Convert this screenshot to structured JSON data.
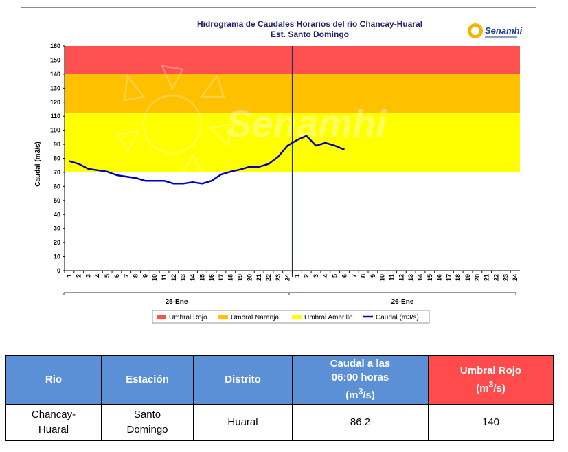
{
  "chart_data": {
    "type": "line",
    "title": "Hidrograma de Caudales Horarios del río Chancay-Huaral",
    "subtitle": "Est. Santo Domingo",
    "logo_text": "Senamhi",
    "watermark_text": "Senamhi",
    "ylabel": "Caudal  (m3/s)",
    "ylim": [
      0,
      160
    ],
    "yticks": [
      "0",
      "10",
      "20",
      "30",
      "40",
      "50",
      "60",
      "70",
      "80",
      "90",
      "100",
      "110",
      "120",
      "130",
      "140",
      "150",
      "160"
    ],
    "xticks": [
      "1",
      "2",
      "3",
      "4",
      "5",
      "6",
      "7",
      "8",
      "9",
      "10",
      "11",
      "12",
      "13",
      "14",
      "15",
      "16",
      "17",
      "18",
      "19",
      "20",
      "21",
      "22",
      "23",
      "24",
      "1",
      "2",
      "3",
      "4",
      "5",
      "6",
      "7",
      "8",
      "9",
      "10",
      "11",
      "12",
      "13",
      "14",
      "15",
      "16",
      "17",
      "18",
      "19",
      "20",
      "21",
      "22",
      "23",
      "24"
    ],
    "days": [
      "25-Ene",
      "26-Ene"
    ],
    "bands": [
      {
        "name": "Umbral Rojo",
        "from": 140,
        "to": 160,
        "color": "#ff5050"
      },
      {
        "name": "Umbral Naranja",
        "from": 112,
        "to": 140,
        "color": "#ffc000"
      },
      {
        "name": "Umbral Amarillo",
        "from": 70,
        "to": 112,
        "color": "#ffff00"
      }
    ],
    "series": [
      {
        "name": "Caudal (m3/s)",
        "color": "#0000c0",
        "values": [
          78,
          76,
          72.5,
          71.5,
          70.5,
          68,
          67,
          66,
          64,
          64,
          64,
          62,
          62,
          63,
          62,
          64,
          68.5,
          70.5,
          72,
          74,
          74,
          76,
          81,
          89,
          93,
          96,
          89,
          91,
          89,
          86.2
        ]
      }
    ],
    "legend": [
      "Umbral Rojo",
      "Umbral Naranja",
      "Umbral Amarillo",
      "Caudal (m3/s)"
    ],
    "legend_position": "bottom",
    "colors": {
      "axis": "#000000",
      "divider": "#1f2f4f",
      "title": "#1f1f6e"
    }
  },
  "table": {
    "headers": {
      "rio": "Rio",
      "estacion": "Estación",
      "distrito": "Distrito",
      "caudal_l1": "Caudal a las",
      "caudal_l2": "06:00 horas",
      "caudal_unit_base": "(m",
      "caudal_unit_exp": "3",
      "caudal_unit_end": "/s)",
      "umbral_l1": "Umbral Rojo",
      "umbral_unit_base": "(m",
      "umbral_unit_exp": "3",
      "umbral_unit_end": "/s)"
    },
    "row": {
      "rio_l1": "Chancay-",
      "rio_l2": "Huaral",
      "estacion_l1": "Santo",
      "estacion_l2": "Domingo",
      "distrito": "Huaral",
      "caudal": "86.2",
      "umbral": "140"
    },
    "colors": {
      "header_blue": "#5b8fd6",
      "header_red": "#ff4b4b"
    }
  }
}
